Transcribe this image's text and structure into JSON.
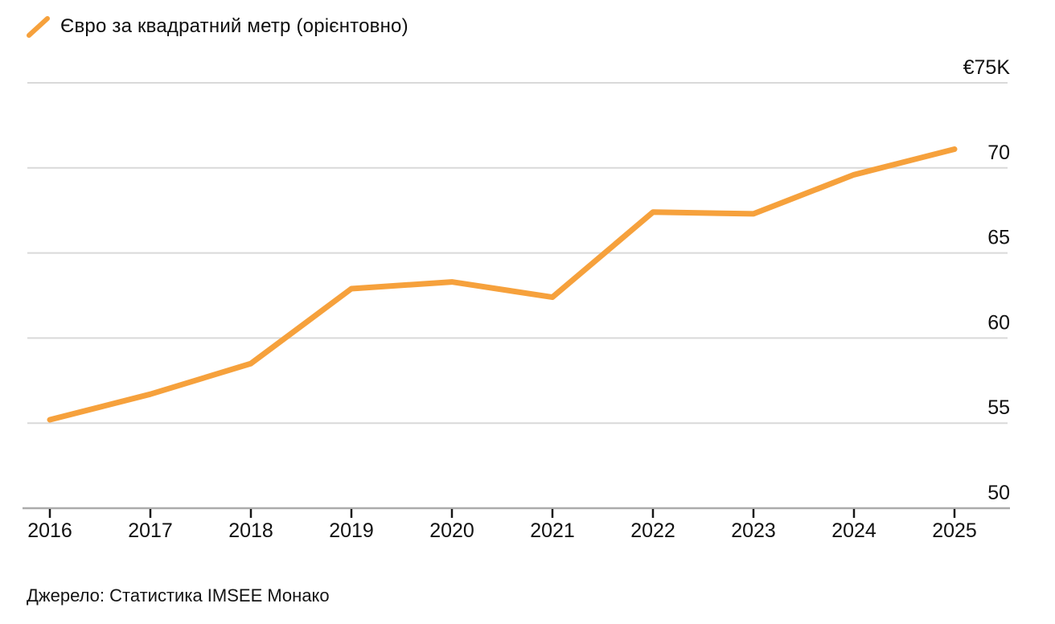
{
  "legend": {
    "label": "Євро за квадратний метр (орієнтовно)",
    "marker_color": "#F6A13C"
  },
  "source": {
    "text": "Джерело: Статистика IMSEE Монако"
  },
  "colors": {
    "accent": "#F6A13C",
    "gridline": "#D9D9D9",
    "axis_line": "#ABABAB",
    "tick": "#161616",
    "text": "#111111",
    "background": "#FFFFFF"
  },
  "chart_data": {
    "type": "line",
    "title": "Євро за квадратний метр (орієнтовно)",
    "unit": "€K",
    "x": [
      2016,
      2017,
      2018,
      2019,
      2020,
      2021,
      2022,
      2023,
      2024,
      2025
    ],
    "series": [
      {
        "name": "Євро за квадратний метр (орієнтовно)",
        "color": "#F6A13C",
        "values": [
          55.2,
          56.7,
          58.5,
          62.9,
          63.3,
          62.4,
          67.4,
          67.3,
          69.6,
          71.1
        ]
      }
    ],
    "ylim": [
      50,
      75
    ],
    "y_ticks": [
      {
        "value": 75,
        "label": "€75K"
      },
      {
        "value": 70,
        "label": "70"
      },
      {
        "value": 65,
        "label": "65"
      },
      {
        "value": 60,
        "label": "60"
      },
      {
        "value": 55,
        "label": "55"
      },
      {
        "value": 50,
        "label": "50"
      }
    ],
    "grid": "horizontal",
    "y_axis_side": "right",
    "legend_position": "top-left",
    "source": "Джерело: Статистика IMSEE Монако"
  }
}
